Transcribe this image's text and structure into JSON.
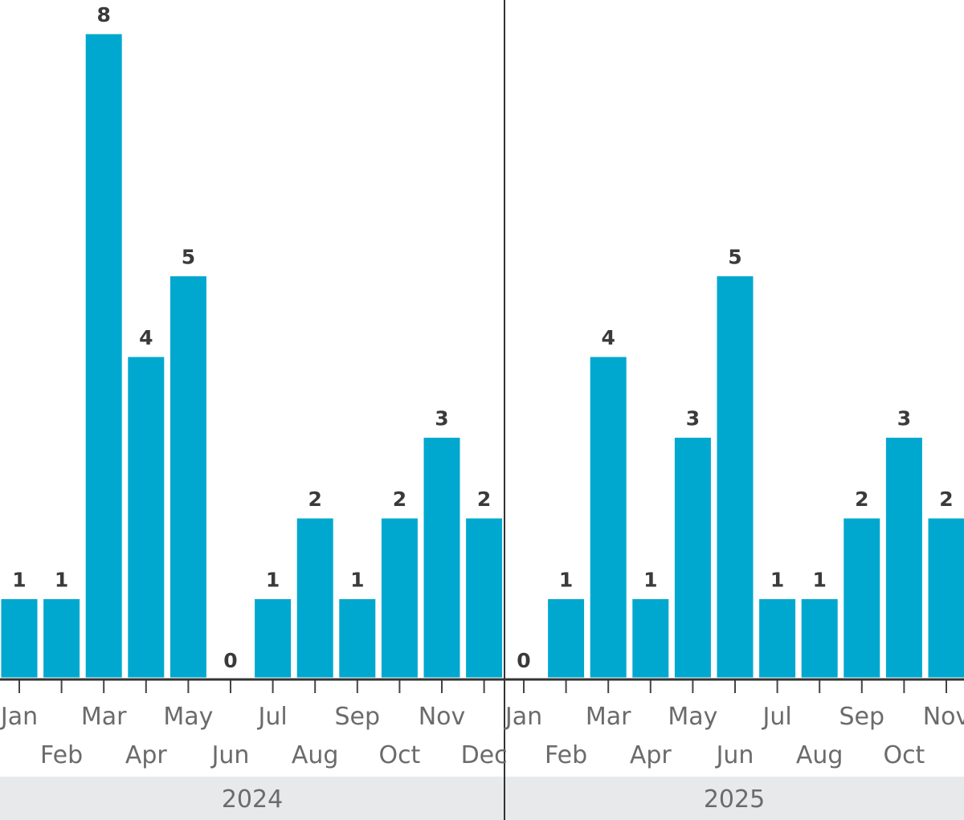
{
  "chart_data": {
    "type": "bar",
    "title": "",
    "xlabel": "",
    "ylabel": "",
    "ylim": [
      0,
      8
    ],
    "grid": false,
    "colors": {
      "bar": "#00a8cf"
    },
    "groups": [
      {
        "year": "2024",
        "categories": [
          "Jan",
          "Feb",
          "Mar",
          "Apr",
          "May",
          "Jun",
          "Jul",
          "Aug",
          "Sep",
          "Oct",
          "Nov",
          "Dec"
        ],
        "values": [
          1,
          1,
          8,
          4,
          5,
          0,
          1,
          2,
          1,
          2,
          3,
          2
        ]
      },
      {
        "year": "2025",
        "categories": [
          "Jan",
          "Feb",
          "Mar",
          "Apr",
          "May",
          "Jun",
          "Jul",
          "Aug",
          "Sep",
          "Oct",
          "Nov"
        ],
        "values": [
          0,
          1,
          4,
          1,
          3,
          5,
          1,
          1,
          2,
          3,
          2
        ]
      }
    ]
  }
}
